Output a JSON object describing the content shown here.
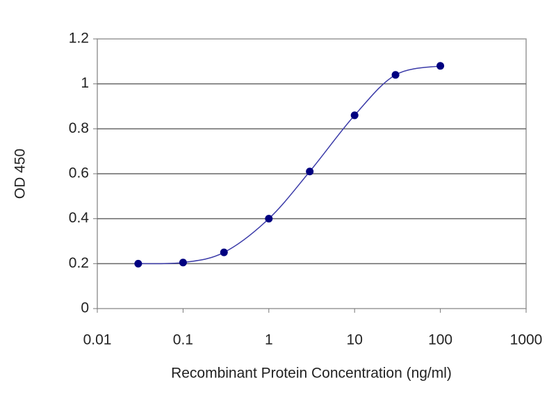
{
  "chart_data": {
    "type": "line",
    "x_label": "Recombinant Protein Concentration (ng/ml)",
    "y_label": "OD 450",
    "x": [
      0.03,
      0.1,
      0.3,
      1,
      3,
      10,
      30,
      100
    ],
    "values": [
      0.2,
      0.205,
      0.25,
      0.4,
      0.61,
      0.86,
      1.04,
      1.08
    ],
    "color": "#000080",
    "line_color": "#3a3aa8",
    "x_scale": "log",
    "xlim": [
      0.01,
      1000
    ],
    "xticks": [
      0.01,
      0.1,
      1,
      10,
      100,
      1000
    ],
    "ylim": [
      0,
      1.2
    ],
    "yticks": [
      0,
      0.2,
      0.4,
      0.6,
      0.8,
      1,
      1.2
    ],
    "grid": true
  }
}
